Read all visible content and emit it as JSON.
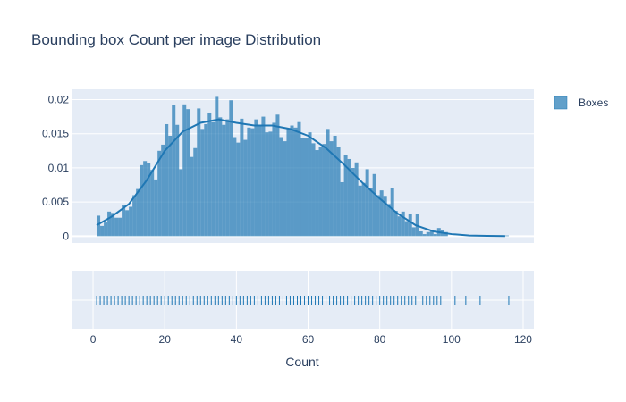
{
  "chart_data": {
    "type": "histogram",
    "title": "Bounding box Count per image Distribution",
    "xlabel": "Count",
    "ylabel": "",
    "xlim": [
      -6,
      123
    ],
    "ylim": [
      -0.001,
      0.0215
    ],
    "x_ticks": [
      0,
      20,
      40,
      60,
      80,
      100,
      120
    ],
    "y_ticks": [
      0,
      0.005,
      0.01,
      0.015,
      0.02
    ],
    "y_tick_labels": [
      "0",
      "0.005",
      "0.01",
      "0.015",
      "0.02"
    ],
    "legend": {
      "position": "top-right",
      "entries": [
        "Boxes"
      ]
    },
    "colors": {
      "series": "#1f77b4",
      "plot_bg": "#e5ecf6",
      "grid": "#ffffff",
      "text": "#2a3f5f"
    },
    "series": [
      {
        "name": "Boxes",
        "bin_width": 1,
        "bins_start": 1,
        "density": [
          0.003,
          0.0015,
          0.002,
          0.0036,
          0.0034,
          0.0027,
          0.0027,
          0.0045,
          0.0038,
          0.0043,
          0.006,
          0.0069,
          0.0104,
          0.011,
          0.0107,
          0.0097,
          0.0083,
          0.0125,
          0.0134,
          0.0164,
          0.0147,
          0.0192,
          0.0163,
          0.0098,
          0.0193,
          0.0186,
          0.0116,
          0.0129,
          0.0187,
          0.0157,
          0.0164,
          0.0181,
          0.0167,
          0.0204,
          0.0174,
          0.0163,
          0.0171,
          0.0199,
          0.0145,
          0.0137,
          0.0172,
          0.0141,
          0.0159,
          0.0158,
          0.0171,
          0.0161,
          0.0175,
          0.0152,
          0.0153,
          0.0166,
          0.0178,
          0.0145,
          0.0139,
          0.0158,
          0.0162,
          0.0159,
          0.0167,
          0.0144,
          0.0143,
          0.0152,
          0.0136,
          0.0126,
          0.0131,
          0.0135,
          0.0157,
          0.0139,
          0.0147,
          0.0131,
          0.0079,
          0.0119,
          0.0113,
          0.01,
          0.0108,
          0.0074,
          0.0078,
          0.0098,
          0.0071,
          0.0091,
          0.006,
          0.0067,
          0.0059,
          0.0047,
          0.0071,
          0.0037,
          0.0029,
          0.0036,
          0.0022,
          0.0032,
          0.0013,
          0.0032,
          0.0007,
          0.0003,
          0.0006,
          0.0007,
          0.0003,
          0.0012,
          0.0009,
          0.0006,
          0,
          0,
          0,
          0,
          0,
          0,
          0,
          0,
          0,
          0,
          0,
          0,
          0,
          0,
          0,
          0,
          0.0001
        ]
      }
    ],
    "kde": {
      "x": [
        1,
        5,
        10,
        15,
        20,
        25,
        30,
        35,
        40,
        45,
        50,
        55,
        60,
        65,
        70,
        75,
        80,
        85,
        90,
        95,
        100,
        105,
        110,
        115
      ],
      "y": [
        0.0016,
        0.0028,
        0.0047,
        0.0082,
        0.0125,
        0.0153,
        0.0166,
        0.0171,
        0.0166,
        0.0162,
        0.0162,
        0.0157,
        0.0147,
        0.0129,
        0.0105,
        0.0079,
        0.0055,
        0.0033,
        0.0016,
        0.0007,
        0.0003,
        0.0001,
        5e-05,
        2e-05
      ]
    },
    "rug": [
      1,
      2,
      3,
      4,
      5,
      6,
      7,
      8,
      9,
      10,
      11,
      12,
      13,
      14,
      15,
      16,
      17,
      18,
      19,
      20,
      21,
      22,
      23,
      24,
      25,
      26,
      27,
      28,
      29,
      30,
      31,
      32,
      33,
      34,
      35,
      36,
      37,
      38,
      39,
      40,
      41,
      42,
      43,
      44,
      45,
      46,
      47,
      48,
      49,
      50,
      51,
      52,
      53,
      54,
      55,
      56,
      57,
      58,
      59,
      60,
      61,
      62,
      63,
      64,
      65,
      66,
      67,
      68,
      69,
      70,
      71,
      72,
      73,
      74,
      75,
      76,
      77,
      78,
      79,
      80,
      81,
      82,
      83,
      84,
      85,
      86,
      87,
      88,
      89,
      90,
      92,
      93,
      94,
      95,
      96,
      97,
      101,
      104,
      108,
      116
    ]
  }
}
